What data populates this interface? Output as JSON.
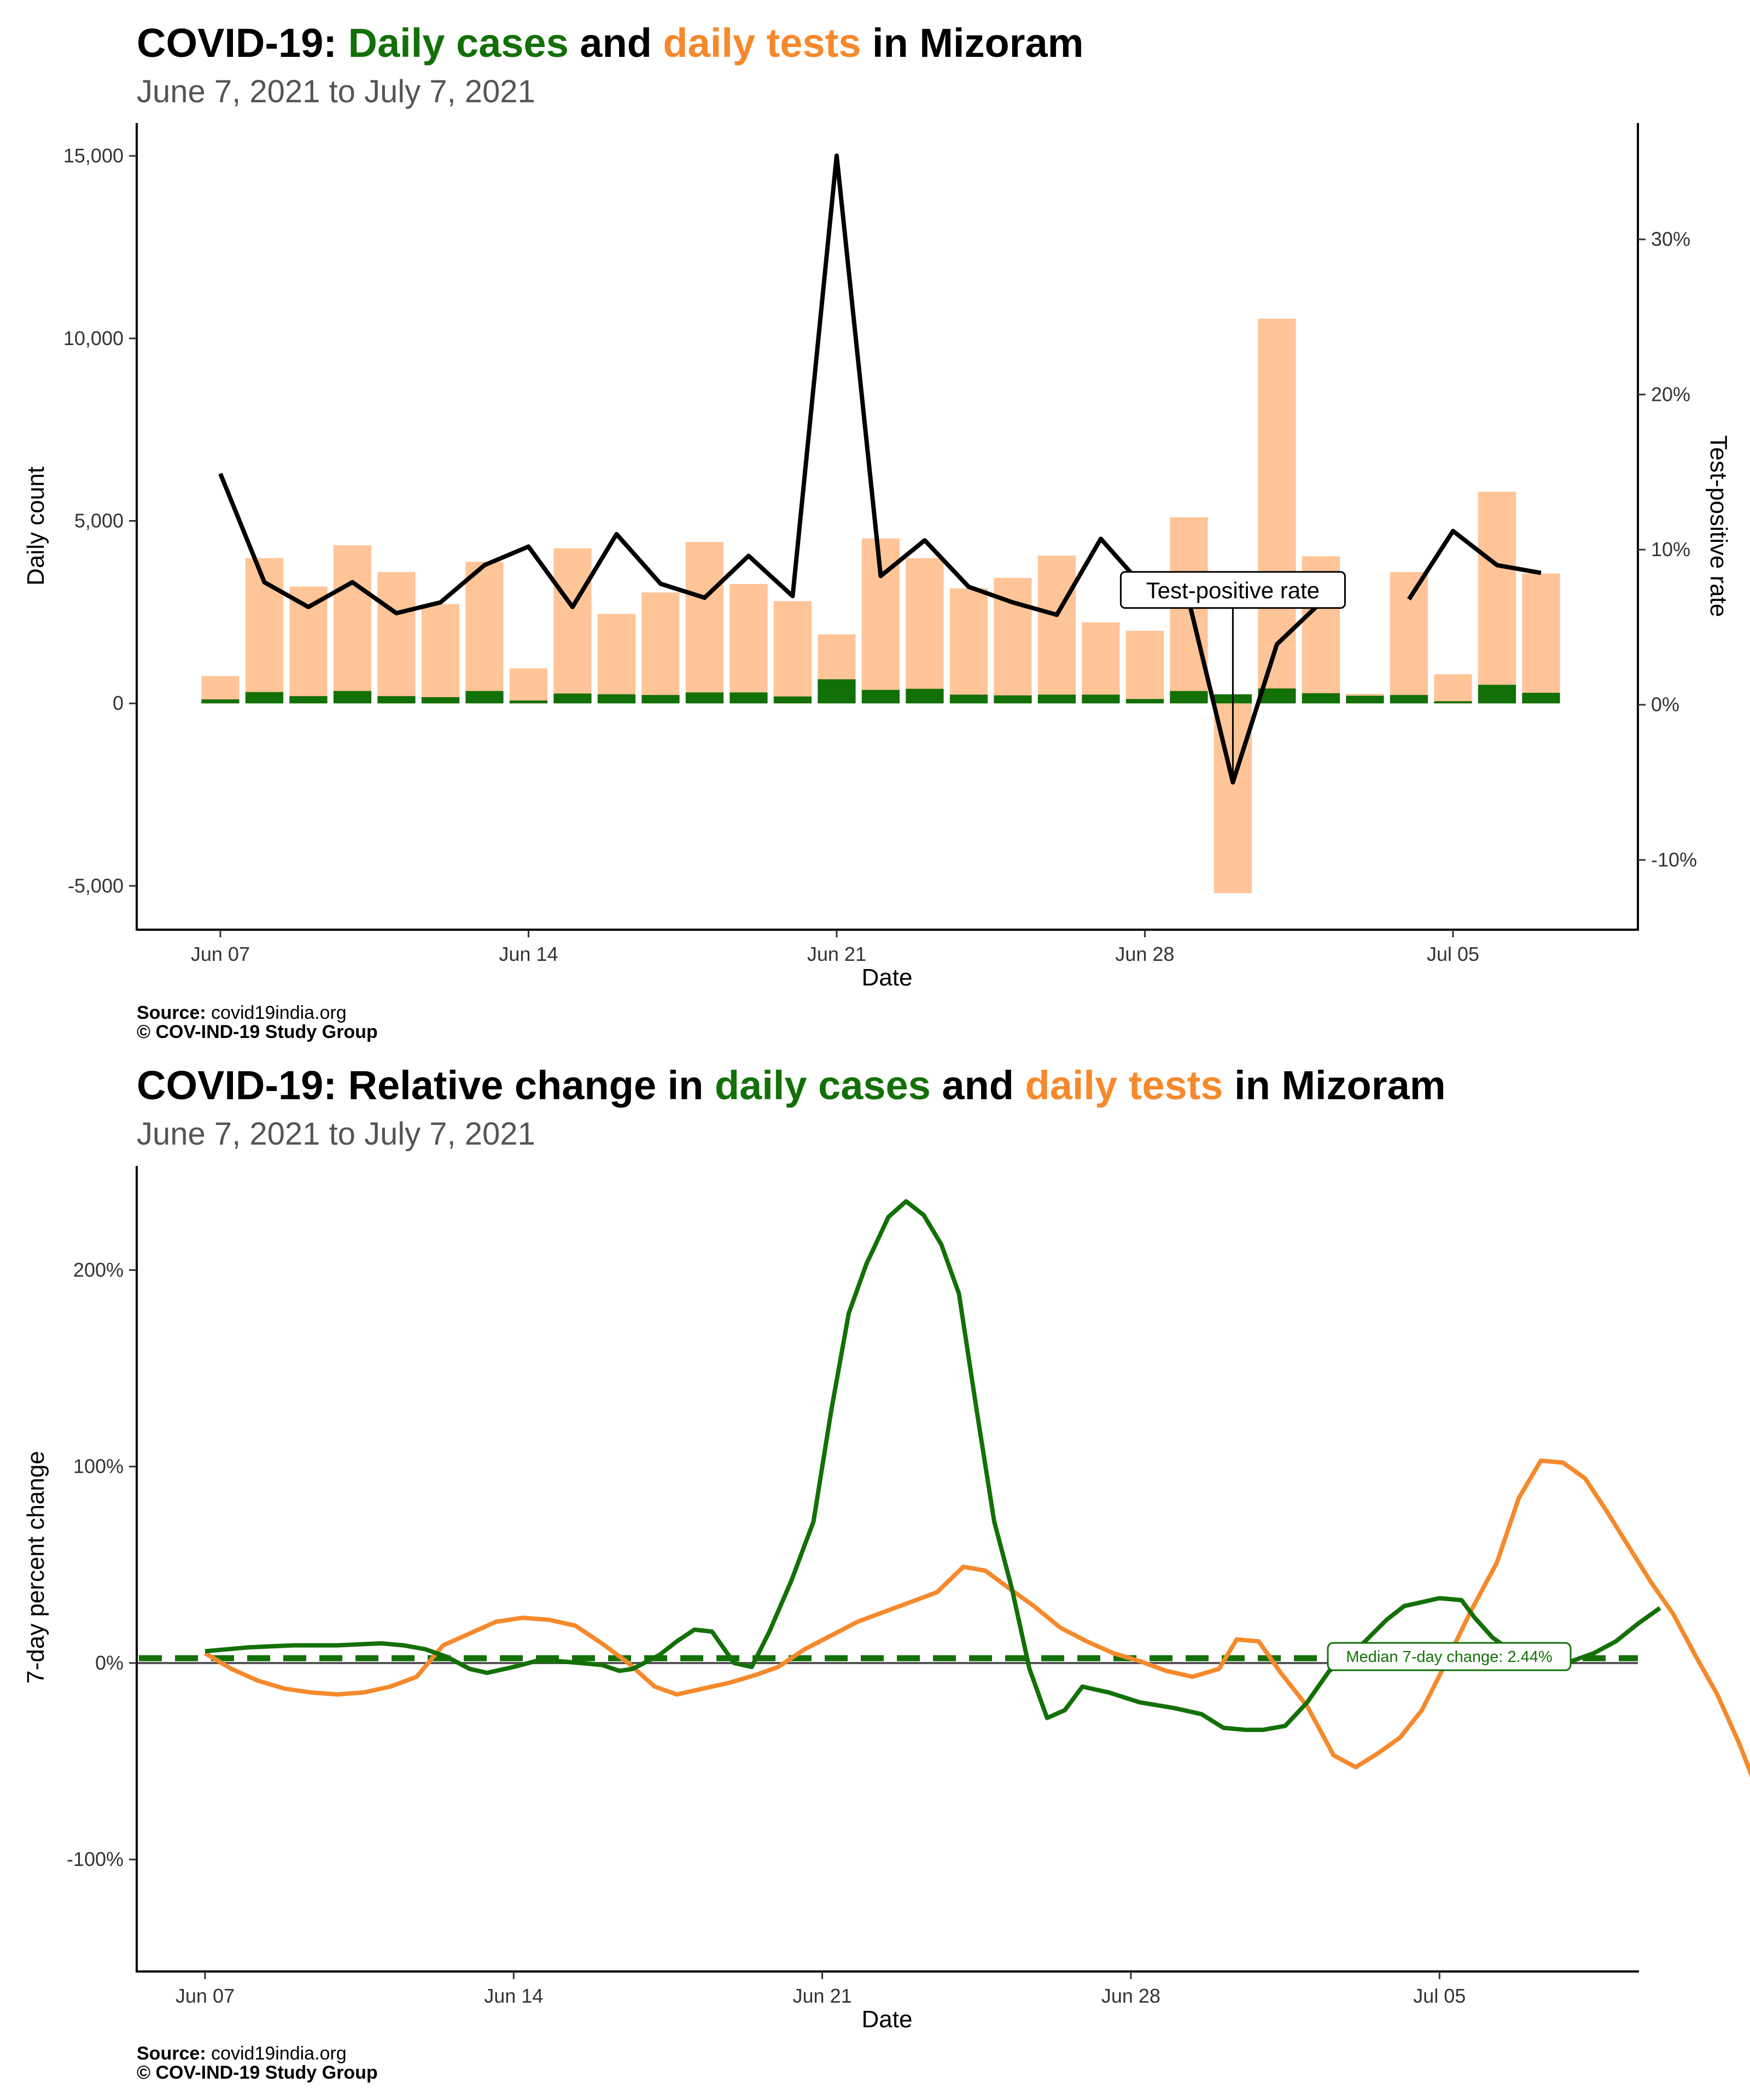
{
  "colors": {
    "cases": "#137007",
    "tests_bar": "#FFC497",
    "tests_line": "#F5892B",
    "rate_line": "#000000",
    "median_line": "#137007",
    "title_gray": "#555555"
  },
  "chart_data": [
    {
      "type": "bar",
      "title": {
        "prefix": "COVID-19: ",
        "cases": "Daily cases",
        "mid": " and ",
        "tests": "daily tests",
        "suffix": " in Mizoram"
      },
      "subtitle": "June  7, 2021 to July  7, 2021",
      "xlabel": "Date",
      "ylabel": "Daily count",
      "y2label": "Test-positive rate",
      "ylim": [
        -6200,
        15900
      ],
      "y2lim": [
        -14.5,
        37.5
      ],
      "yticks": [
        -5000,
        0,
        5000,
        10000,
        15000
      ],
      "yticklabels": [
        "-5,000",
        "0",
        "5,000",
        "10,000",
        "15,000"
      ],
      "y2ticks": [
        -10,
        0,
        10,
        20,
        30
      ],
      "y2ticklabels": [
        "-10%",
        "0%",
        "10%",
        "20%",
        "30%"
      ],
      "xticks": [
        0,
        7,
        14,
        21,
        28
      ],
      "xticklabels": [
        "Jun 07",
        "Jun 14",
        "Jun 21",
        "Jun 28",
        "Jul 05"
      ],
      "x_range": [
        -1.9,
        32.2
      ],
      "dates": [
        "Jun 07",
        "Jun 08",
        "Jun 09",
        "Jun 10",
        "Jun 11",
        "Jun 12",
        "Jun 13",
        "Jun 14",
        "Jun 15",
        "Jun 16",
        "Jun 17",
        "Jun 18",
        "Jun 19",
        "Jun 20",
        "Jun 21",
        "Jun 22",
        "Jun 23",
        "Jun 24",
        "Jun 25",
        "Jun 26",
        "Jun 27",
        "Jun 28",
        "Jun 29",
        "Jun 30",
        "Jul 01",
        "Jul 02",
        "Jul 03",
        "Jul 04",
        "Jul 05",
        "Jul 06",
        "Jul 07"
      ],
      "series": [
        {
          "name": "Daily tests",
          "values": [
            750,
            3980,
            3200,
            4330,
            3600,
            2720,
            3880,
            960,
            4250,
            2450,
            3040,
            4420,
            3270,
            2800,
            1890,
            4520,
            3980,
            3150,
            3440,
            4050,
            2220,
            1990,
            5100,
            -5200,
            10540,
            4030,
            260,
            3600,
            800,
            5800,
            3560
          ]
        },
        {
          "name": "Daily cases",
          "values": [
            110,
            310,
            200,
            340,
            200,
            170,
            340,
            80,
            270,
            250,
            230,
            300,
            300,
            190,
            660,
            370,
            400,
            240,
            220,
            240,
            240,
            120,
            340,
            250,
            410,
            280,
            210,
            230,
            60,
            510,
            290
          ]
        },
        {
          "name": "Test-positive rate",
          "values": [
            14.9,
            7.9,
            6.3,
            7.9,
            5.9,
            6.6,
            9.0,
            10.2,
            6.3,
            11.0,
            7.8,
            6.9,
            9.6,
            7.0,
            35.4,
            8.3,
            10.6,
            7.6,
            6.6,
            5.8,
            10.7,
            7.5,
            6.7,
            -5.0,
            3.9,
            6.6,
            null,
            6.8,
            11.2,
            9.0,
            8.5
          ]
        }
      ],
      "annotation": {
        "label": "Test-positive rate",
        "x": 23,
        "y": 7.4
      },
      "source_label": "Source:",
      "source_text": " covid19india.org",
      "copyright": "© COV-IND-19 Study Group"
    },
    {
      "type": "line",
      "title": {
        "prefix": "COVID-19: Relative change in ",
        "cases": "daily cases",
        "mid": " and ",
        "tests": "daily tests",
        "suffix": " in Mizoram"
      },
      "subtitle": "June  7, 2021 to July  7, 2021",
      "xlabel": "Date",
      "ylabel": "7-day percent change",
      "ylim": [
        -157,
        253
      ],
      "yticks": [
        -100,
        0,
        100,
        200
      ],
      "yticklabels": [
        "-100%",
        "0%",
        "100%",
        "200%"
      ],
      "xticks": [
        0,
        7,
        14,
        21,
        28
      ],
      "xticklabels": [
        "Jun 07",
        "Jun 14",
        "Jun 21",
        "Jun 28",
        "Jul 05"
      ],
      "x_range": [
        -1.55,
        32.5
      ],
      "median": {
        "value": 2.44,
        "label": "Median 7-day change: 2.44%"
      },
      "series": [
        {
          "name": "Daily cases",
          "points": [
            [
              0,
              6
            ],
            [
              1,
              8
            ],
            [
              2,
              9
            ],
            [
              3,
              9
            ],
            [
              4,
              10
            ],
            [
              4.5,
              9
            ],
            [
              5,
              7
            ],
            [
              5.5,
              3
            ],
            [
              6,
              -3
            ],
            [
              6.4,
              -5
            ],
            [
              7,
              -2
            ],
            [
              7.5,
              1
            ],
            [
              8,
              1
            ],
            [
              8.5,
              0
            ],
            [
              9,
              -1
            ],
            [
              9.4,
              -4
            ],
            [
              9.7,
              -3
            ],
            [
              10.3,
              4
            ],
            [
              10.7,
              11
            ],
            [
              11.1,
              17
            ],
            [
              11.5,
              16
            ],
            [
              12,
              0
            ],
            [
              12.4,
              -2
            ],
            [
              12.8,
              16
            ],
            [
              13.3,
              42
            ],
            [
              13.8,
              72
            ],
            [
              14.2,
              128
            ],
            [
              14.6,
              178
            ],
            [
              15,
              203
            ],
            [
              15.5,
              227
            ],
            [
              15.9,
              235
            ],
            [
              16.3,
              228
            ],
            [
              16.7,
              213
            ],
            [
              17.1,
              188
            ],
            [
              17.5,
              129
            ],
            [
              17.9,
              72
            ],
            [
              18.3,
              38
            ],
            [
              18.7,
              -3
            ],
            [
              19.1,
              -28
            ],
            [
              19.5,
              -24
            ],
            [
              19.9,
              -12
            ],
            [
              20.5,
              -15
            ],
            [
              21.2,
              -20
            ],
            [
              22,
              -23
            ],
            [
              22.6,
              -26
            ],
            [
              23.1,
              -33
            ],
            [
              23.6,
              -34
            ],
            [
              24,
              -34
            ],
            [
              24.5,
              -32
            ],
            [
              25,
              -20
            ],
            [
              25.5,
              -4
            ],
            [
              26,
              4
            ],
            [
              26.4,
              13
            ],
            [
              26.8,
              22
            ],
            [
              27.2,
              29
            ],
            [
              27.6,
              31
            ],
            [
              28,
              33
            ],
            [
              28.5,
              32
            ],
            [
              28.8,
              23
            ],
            [
              29.2,
              13
            ],
            [
              29.7,
              5
            ],
            [
              30.2,
              1
            ],
            [
              30.6,
              0
            ],
            [
              31,
              1
            ],
            [
              31.5,
              5
            ],
            [
              32,
              11
            ],
            [
              32.5,
              20
            ],
            [
              33,
              28
            ]
          ]
        },
        {
          "name": "Daily tests",
          "points": [
            [
              0,
              5
            ],
            [
              0.6,
              -3
            ],
            [
              1.2,
              -9
            ],
            [
              1.8,
              -13
            ],
            [
              2.4,
              -15
            ],
            [
              3,
              -16
            ],
            [
              3.6,
              -15
            ],
            [
              4.2,
              -12
            ],
            [
              4.8,
              -7
            ],
            [
              5.4,
              9
            ],
            [
              6,
              15
            ],
            [
              6.6,
              21
            ],
            [
              7.2,
              23
            ],
            [
              7.8,
              22
            ],
            [
              8.4,
              19
            ],
            [
              9,
              10
            ],
            [
              9.6,
              0
            ],
            [
              10.2,
              -12
            ],
            [
              10.7,
              -16
            ],
            [
              11.3,
              -13
            ],
            [
              11.9,
              -10
            ],
            [
              12.5,
              -6
            ],
            [
              13,
              -2
            ],
            [
              13.6,
              7
            ],
            [
              14.2,
              14
            ],
            [
              14.8,
              21
            ],
            [
              15.4,
              26
            ],
            [
              16,
              31
            ],
            [
              16.6,
              36
            ],
            [
              17.2,
              49
            ],
            [
              17.7,
              47
            ],
            [
              18.3,
              37
            ],
            [
              18.8,
              29
            ],
            [
              19.4,
              18
            ],
            [
              20,
              11
            ],
            [
              20.6,
              5
            ],
            [
              21.2,
              1
            ],
            [
              21.8,
              -4
            ],
            [
              22.4,
              -7
            ],
            [
              23,
              -3
            ],
            [
              23.4,
              12
            ],
            [
              23.9,
              11
            ],
            [
              24.4,
              -5
            ],
            [
              25,
              -22
            ],
            [
              25.6,
              -47
            ],
            [
              26.1,
              -53
            ],
            [
              26.6,
              -46
            ],
            [
              27.1,
              -38
            ],
            [
              27.6,
              -24
            ],
            [
              28.1,
              -2
            ],
            [
              28.7,
              26
            ],
            [
              29.3,
              51
            ],
            [
              29.8,
              84
            ],
            [
              30.3,
              103
            ],
            [
              30.8,
              102
            ],
            [
              31.3,
              94
            ],
            [
              31.8,
              77
            ],
            [
              32.3,
              59
            ],
            [
              32.8,
              41
            ],
            [
              33.3,
              25
            ],
            [
              33.8,
              4
            ],
            [
              34.3,
              -16
            ],
            [
              34.8,
              -41
            ],
            [
              35.3,
              -70
            ],
            [
              35.8,
              -103
            ],
            [
              36.3,
              -138
            ]
          ]
        }
      ],
      "source_label": "Source:",
      "source_text": " covid19india.org",
      "copyright": "© COV-IND-19 Study Group"
    }
  ]
}
